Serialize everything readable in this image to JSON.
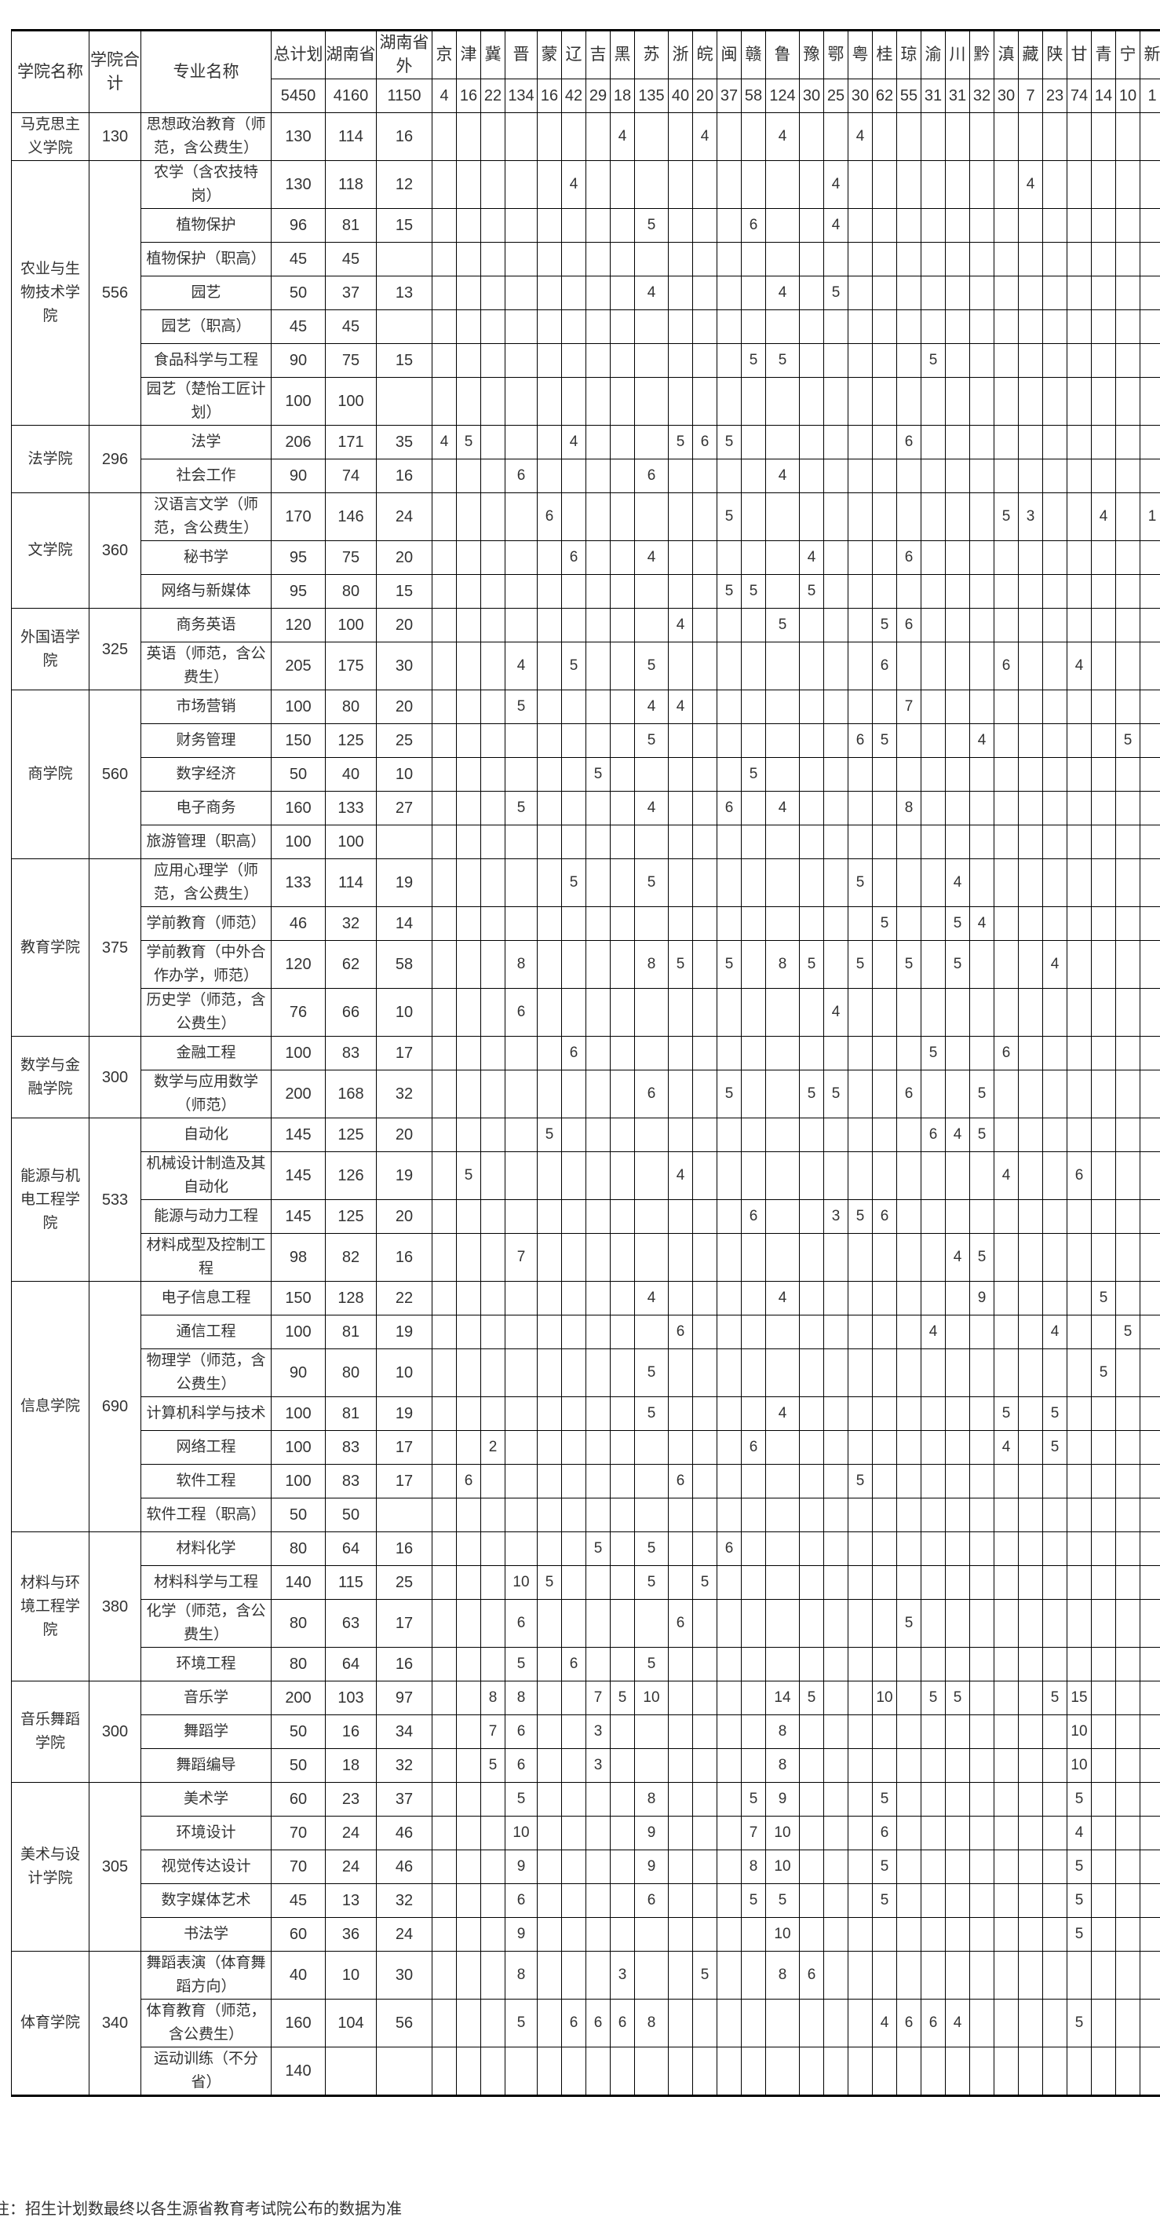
{
  "header": {
    "college": "学院名称",
    "college_total": "学院合计",
    "major": "专业名称",
    "plan_total": "总计划",
    "hunan": "湖南省",
    "outside": "湖南省外",
    "sum_total": "5450",
    "sum_hunan": "4160",
    "sum_outside": "1150",
    "provinces": [
      {
        "name": "京",
        "total": "4"
      },
      {
        "name": "津",
        "total": "16"
      },
      {
        "name": "冀",
        "total": "22"
      },
      {
        "name": "晋",
        "total": "134"
      },
      {
        "name": "蒙",
        "total": "16"
      },
      {
        "name": "辽",
        "total": "42"
      },
      {
        "name": "吉",
        "total": "29"
      },
      {
        "name": "黑",
        "total": "18"
      },
      {
        "name": "苏",
        "total": "135"
      },
      {
        "name": "浙",
        "total": "40"
      },
      {
        "name": "皖",
        "total": "20"
      },
      {
        "name": "闽",
        "total": "37"
      },
      {
        "name": "赣",
        "total": "58"
      },
      {
        "name": "鲁",
        "total": "124"
      },
      {
        "name": "豫",
        "total": "30"
      },
      {
        "name": "鄂",
        "total": "25"
      },
      {
        "name": "粤",
        "total": "30"
      },
      {
        "name": "桂",
        "total": "62"
      },
      {
        "name": "琼",
        "total": "55"
      },
      {
        "name": "渝",
        "total": "31"
      },
      {
        "name": "川",
        "total": "31"
      },
      {
        "name": "黔",
        "total": "32"
      },
      {
        "name": "滇",
        "total": "30"
      },
      {
        "name": "藏",
        "total": "7"
      },
      {
        "name": "陕",
        "total": "23"
      },
      {
        "name": "甘",
        "total": "74"
      },
      {
        "name": "青",
        "total": "14"
      },
      {
        "name": "宁",
        "total": "10"
      },
      {
        "name": "新",
        "total": "1"
      }
    ]
  },
  "colleges": [
    {
      "name": "马克思主义学院",
      "total": "130",
      "majors": [
        {
          "name": "思想政治教育（师范，含公费生）",
          "total": "130",
          "hunan": "114",
          "outside": "16",
          "p": {
            "黑": "4",
            "皖": "4",
            "鲁": "4",
            "粤": "4"
          }
        }
      ]
    },
    {
      "name": "农业与生物技术学院",
      "total": "556",
      "majors": [
        {
          "name": "农学（含农技特岗）",
          "total": "130",
          "hunan": "118",
          "outside": "12",
          "p": {
            "辽": "4",
            "鄂": "4",
            "藏": "4"
          }
        },
        {
          "name": "植物保护",
          "total": "96",
          "hunan": "81",
          "outside": "15",
          "p": {
            "苏": "5",
            "赣": "6",
            "鄂": "4"
          }
        },
        {
          "name": "植物保护（职高）",
          "total": "45",
          "hunan": "45",
          "outside": "",
          "p": {}
        },
        {
          "name": "园艺",
          "total": "50",
          "hunan": "37",
          "outside": "13",
          "p": {
            "苏": "4",
            "鲁": "4",
            "鄂": "5"
          }
        },
        {
          "name": "园艺（职高）",
          "total": "45",
          "hunan": "45",
          "outside": "",
          "p": {}
        },
        {
          "name": "食品科学与工程",
          "total": "90",
          "hunan": "75",
          "outside": "15",
          "p": {
            "赣": "5",
            "鲁": "5",
            "渝": "5"
          }
        },
        {
          "name": "园艺（楚怡工匠计划）",
          "total": "100",
          "hunan": "100",
          "outside": "",
          "p": {}
        }
      ]
    },
    {
      "name": "法学院",
      "total": "296",
      "majors": [
        {
          "name": "法学",
          "total": "206",
          "hunan": "171",
          "outside": "35",
          "p": {
            "京": "4",
            "津": "5",
            "辽": "4",
            "浙": "5",
            "皖": "6",
            "闽": "5",
            "琼": "6"
          }
        },
        {
          "name": "社会工作",
          "total": "90",
          "hunan": "74",
          "outside": "16",
          "p": {
            "晋": "6",
            "苏": "6",
            "鲁": "4"
          }
        }
      ]
    },
    {
      "name": "文学院",
      "total": "360",
      "majors": [
        {
          "name": "汉语言文学（师范，含公费生）",
          "total": "170",
          "hunan": "146",
          "outside": "24",
          "p": {
            "蒙": "6",
            "闽": "5",
            "滇": "5",
            "藏": "3",
            "青": "4",
            "新": "1"
          }
        },
        {
          "name": "秘书学",
          "total": "95",
          "hunan": "75",
          "outside": "20",
          "p": {
            "辽": "6",
            "苏": "4",
            "豫": "4",
            "琼": "6"
          }
        },
        {
          "name": "网络与新媒体",
          "total": "95",
          "hunan": "80",
          "outside": "15",
          "p": {
            "闽": "5",
            "赣": "5",
            "豫": "5"
          }
        }
      ]
    },
    {
      "name": "外国语学院",
      "total": "325",
      "majors": [
        {
          "name": "商务英语",
          "total": "120",
          "hunan": "100",
          "outside": "20",
          "p": {
            "浙": "4",
            "鲁": "5",
            "桂": "5",
            "琼": "6"
          }
        },
        {
          "name": "英语（师范，含公费生）",
          "total": "205",
          "hunan": "175",
          "outside": "30",
          "p": {
            "晋": "4",
            "辽": "5",
            "苏": "5",
            "桂": "6",
            "滇": "6",
            "甘": "4"
          }
        }
      ]
    },
    {
      "name": "商学院",
      "total": "560",
      "majors": [
        {
          "name": "市场营销",
          "total": "100",
          "hunan": "80",
          "outside": "20",
          "p": {
            "晋": "5",
            "苏": "4",
            "浙": "4",
            "琼": "7"
          }
        },
        {
          "name": "财务管理",
          "total": "150",
          "hunan": "125",
          "outside": "25",
          "p": {
            "苏": "5",
            "粤": "6",
            "桂": "5",
            "黔": "4",
            "宁": "5"
          }
        },
        {
          "name": "数字经济",
          "total": "50",
          "hunan": "40",
          "outside": "10",
          "p": {
            "吉": "5",
            "赣": "5"
          }
        },
        {
          "name": "电子商务",
          "total": "160",
          "hunan": "133",
          "outside": "27",
          "p": {
            "晋": "5",
            "苏": "4",
            "闽": "6",
            "鲁": "4",
            "琼": "8"
          }
        },
        {
          "name": "旅游管理（职高）",
          "total": "100",
          "hunan": "100",
          "outside": "",
          "p": {}
        }
      ]
    },
    {
      "name": "教育学院",
      "total": "375",
      "majors": [
        {
          "name": "应用心理学（师范，含公费生）",
          "total": "133",
          "hunan": "114",
          "outside": "19",
          "p": {
            "辽": "5",
            "苏": "5",
            "粤": "5",
            "川": "4"
          }
        },
        {
          "name": "学前教育（师范）",
          "total": "46",
          "hunan": "32",
          "outside": "14",
          "p": {
            "桂": "5",
            "川": "5",
            "黔": "4"
          }
        },
        {
          "name": "学前教育（中外合作办学，师范）",
          "total": "120",
          "hunan": "62",
          "outside": "58",
          "p": {
            "晋": "8",
            "苏": "8",
            "浙": "5",
            "闽": "5",
            "鲁": "8",
            "豫": "5",
            "粤": "5",
            "琼": "5",
            "川": "5",
            "陕": "4"
          }
        },
        {
          "name": "历史学（师范，含公费生）",
          "total": "76",
          "hunan": "66",
          "outside": "10",
          "p": {
            "晋": "6",
            "鄂": "4"
          }
        }
      ]
    },
    {
      "name": "数学与金融学院",
      "total": "300",
      "majors": [
        {
          "name": "金融工程",
          "total": "100",
          "hunan": "83",
          "outside": "17",
          "p": {
            "辽": "6",
            "渝": "5",
            "滇": "6"
          }
        },
        {
          "name": "数学与应用数学（师范）",
          "total": "200",
          "hunan": "168",
          "outside": "32",
          "p": {
            "苏": "6",
            "闽": "5",
            "豫": "5",
            "鄂": "5",
            "琼": "6",
            "黔": "5"
          }
        }
      ]
    },
    {
      "name": "能源与机电工程学院",
      "total": "533",
      "majors": [
        {
          "name": "自动化",
          "total": "145",
          "hunan": "125",
          "outside": "20",
          "p": {
            "蒙": "5",
            "渝": "6",
            "川": "4",
            "黔": "5"
          }
        },
        {
          "name": "机械设计制造及其自动化",
          "total": "145",
          "hunan": "126",
          "outside": "19",
          "p": {
            "津": "5",
            "浙": "4",
            "滇": "4",
            "甘": "6"
          }
        },
        {
          "name": "能源与动力工程",
          "total": "145",
          "hunan": "125",
          "outside": "20",
          "p": {
            "赣": "6",
            "鄂": "3",
            "粤": "5",
            "桂": "6"
          }
        },
        {
          "name": "材料成型及控制工程",
          "total": "98",
          "hunan": "82",
          "outside": "16",
          "p": {
            "晋": "7",
            "川": "4",
            "黔": "5"
          }
        }
      ]
    },
    {
      "name": "信息学院",
      "total": "690",
      "majors": [
        {
          "name": "电子信息工程",
          "total": "150",
          "hunan": "128",
          "outside": "22",
          "p": {
            "苏": "4",
            "鲁": "4",
            "黔": "9",
            "青": "5"
          }
        },
        {
          "name": "通信工程",
          "total": "100",
          "hunan": "81",
          "outside": "19",
          "p": {
            "浙": "6",
            "渝": "4",
            "陕": "4",
            "宁": "5"
          }
        },
        {
          "name": "物理学（师范，含公费生）",
          "total": "90",
          "hunan": "80",
          "outside": "10",
          "p": {
            "苏": "5",
            "青": "5"
          }
        },
        {
          "name": "计算机科学与技术",
          "total": "100",
          "hunan": "81",
          "outside": "19",
          "p": {
            "苏": "5",
            "鲁": "4",
            "滇": "5",
            "陕": "5"
          }
        },
        {
          "name": "网络工程",
          "total": "100",
          "hunan": "83",
          "outside": "17",
          "p": {
            "冀": "2",
            "赣": "6",
            "滇": "4",
            "陕": "5"
          }
        },
        {
          "name": "软件工程",
          "total": "100",
          "hunan": "83",
          "outside": "17",
          "p": {
            "津": "6",
            "浙": "6",
            "粤": "5"
          }
        },
        {
          "name": "软件工程（职高）",
          "total": "50",
          "hunan": "50",
          "outside": "",
          "p": {}
        }
      ]
    },
    {
      "name": "材料与环境工程学院",
      "total": "380",
      "majors": [
        {
          "name": "材料化学",
          "total": "80",
          "hunan": "64",
          "outside": "16",
          "p": {
            "吉": "5",
            "苏": "5",
            "闽": "6"
          }
        },
        {
          "name": "材料科学与工程",
          "total": "140",
          "hunan": "115",
          "outside": "25",
          "p": {
            "晋": "10",
            "蒙": "5",
            "苏": "5",
            "皖": "5"
          }
        },
        {
          "name": "化学（师范，含公费生）",
          "total": "80",
          "hunan": "63",
          "outside": "17",
          "p": {
            "晋": "6",
            "浙": "6",
            "琼": "5"
          }
        },
        {
          "name": "环境工程",
          "total": "80",
          "hunan": "64",
          "outside": "16",
          "p": {
            "晋": "5",
            "辽": "6",
            "苏": "5"
          }
        }
      ]
    },
    {
      "name": "音乐舞蹈学院",
      "total": "300",
      "majors": [
        {
          "name": "音乐学",
          "total": "200",
          "hunan": "103",
          "outside": "97",
          "p": {
            "冀": "8",
            "晋": "8",
            "吉": "7",
            "黑": "5",
            "苏": "10",
            "鲁": "14",
            "豫": "5",
            "桂": "10",
            "渝": "5",
            "川": "5",
            "陕": "5",
            "甘": "15"
          }
        },
        {
          "name": "舞蹈学",
          "total": "50",
          "hunan": "16",
          "outside": "34",
          "p": {
            "冀": "7",
            "晋": "6",
            "吉": "3",
            "鲁": "8",
            "甘": "10"
          }
        },
        {
          "name": "舞蹈编导",
          "total": "50",
          "hunan": "18",
          "outside": "32",
          "p": {
            "冀": "5",
            "晋": "6",
            "吉": "3",
            "鲁": "8",
            "甘": "10"
          }
        }
      ]
    },
    {
      "name": "美术与设计学院",
      "total": "305",
      "majors": [
        {
          "name": "美术学",
          "total": "60",
          "hunan": "23",
          "outside": "37",
          "p": {
            "晋": "5",
            "苏": "8",
            "赣": "5",
            "鲁": "9",
            "桂": "5",
            "甘": "5"
          }
        },
        {
          "name": "环境设计",
          "total": "70",
          "hunan": "24",
          "outside": "46",
          "p": {
            "晋": "10",
            "苏": "9",
            "赣": "7",
            "鲁": "10",
            "桂": "6",
            "甘": "4"
          }
        },
        {
          "name": "视觉传达设计",
          "total": "70",
          "hunan": "24",
          "outside": "46",
          "p": {
            "晋": "9",
            "苏": "9",
            "赣": "8",
            "鲁": "10",
            "桂": "5",
            "甘": "5"
          }
        },
        {
          "name": "数字媒体艺术",
          "total": "45",
          "hunan": "13",
          "outside": "32",
          "p": {
            "晋": "6",
            "苏": "6",
            "赣": "5",
            "鲁": "5",
            "桂": "5",
            "甘": "5"
          }
        },
        {
          "name": "书法学",
          "total": "60",
          "hunan": "36",
          "outside": "24",
          "p": {
            "晋": "9",
            "鲁": "10",
            "甘": "5"
          }
        }
      ]
    },
    {
      "name": "体育学院",
      "total": "340",
      "majors": [
        {
          "name": "舞蹈表演（体育舞蹈方向）",
          "total": "40",
          "hunan": "10",
          "outside": "30",
          "p": {
            "晋": "8",
            "黑": "3",
            "皖": "5",
            "鲁": "8",
            "豫": "6"
          }
        },
        {
          "name": "体育教育（师范，含公费生）",
          "total": "160",
          "hunan": "104",
          "outside": "56",
          "p": {
            "晋": "5",
            "辽": "6",
            "吉": "6",
            "黑": "6",
            "苏": "8",
            "桂": "4",
            "琼": "6",
            "渝": "6",
            "川": "4",
            "甘": "5"
          }
        },
        {
          "name": "运动训练（不分省）",
          "total": "140",
          "hunan": "",
          "outside": "",
          "p": {}
        }
      ]
    }
  ],
  "note": "注：招生计划数最终以各生源省教育考试院公布的数据为准"
}
